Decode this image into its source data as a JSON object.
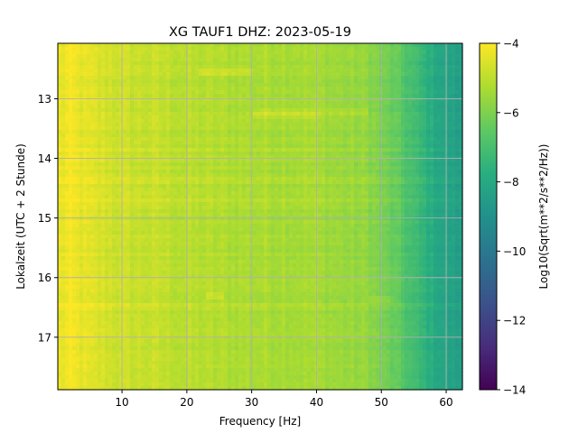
{
  "chart_data": {
    "type": "heatmap",
    "title": "XG TAUF1  DHZ: 2023-05-19",
    "xlabel": "Frequency [Hz]",
    "ylabel": "Lokalzeit (UTC + 2 Stunde)",
    "xlim": [
      0.1,
      62.5
    ],
    "ylim": [
      12.07,
      17.88
    ],
    "x_ticks": [
      10,
      20,
      30,
      40,
      50,
      60
    ],
    "y_ticks": [
      13,
      14,
      15,
      16,
      17
    ],
    "y_inverted": true,
    "grid": true,
    "colormap": "viridis",
    "colorbar": {
      "label": "Log10(Sqrt(m**2/s**2/Hz))",
      "range": [
        -14,
        -4
      ],
      "ticks": [
        -4,
        -6,
        -8,
        -10,
        -12,
        -14
      ]
    },
    "frequency_profile": {
      "x": [
        0.1,
        2,
        5,
        10,
        15,
        20,
        25,
        30,
        35,
        40,
        45,
        48,
        50,
        52,
        54,
        56,
        58,
        60,
        62.5
      ],
      "value": [
        -4.4,
        -4.2,
        -4.5,
        -4.8,
        -4.9,
        -5.1,
        -5.2,
        -5.3,
        -5.3,
        -5.4,
        -5.6,
        -5.7,
        -6.1,
        -6.4,
        -6.9,
        -7.4,
        -7.9,
        -8.2,
        -8.5
      ]
    },
    "time_events": [
      {
        "t": 12.55,
        "f_min": 22,
        "f_max": 30,
        "delta": 0.35
      },
      {
        "t": 13.2,
        "f_min": 30,
        "f_max": 48,
        "delta": 0.3
      },
      {
        "t": 13.3,
        "f_min": 30,
        "f_max": 40,
        "delta": 0.25
      },
      {
        "t": 13.85,
        "f_min": 0,
        "f_max": 62.5,
        "delta": 0.15
      },
      {
        "t": 14.35,
        "f_min": 0,
        "f_max": 62.5,
        "delta": 0.2
      },
      {
        "t": 14.7,
        "f_min": 0,
        "f_max": 62.5,
        "delta": 0.3
      },
      {
        "t": 15.0,
        "f_min": 0,
        "f_max": 62.5,
        "delta": -0.15
      },
      {
        "t": 16.3,
        "f_min": 23,
        "f_max": 26,
        "delta": 0.4
      },
      {
        "t": 16.35,
        "f_min": 48,
        "f_max": 52,
        "delta": 0.4
      },
      {
        "t": 16.5,
        "f_min": 0,
        "f_max": 62.5,
        "delta": 0.15
      }
    ]
  }
}
